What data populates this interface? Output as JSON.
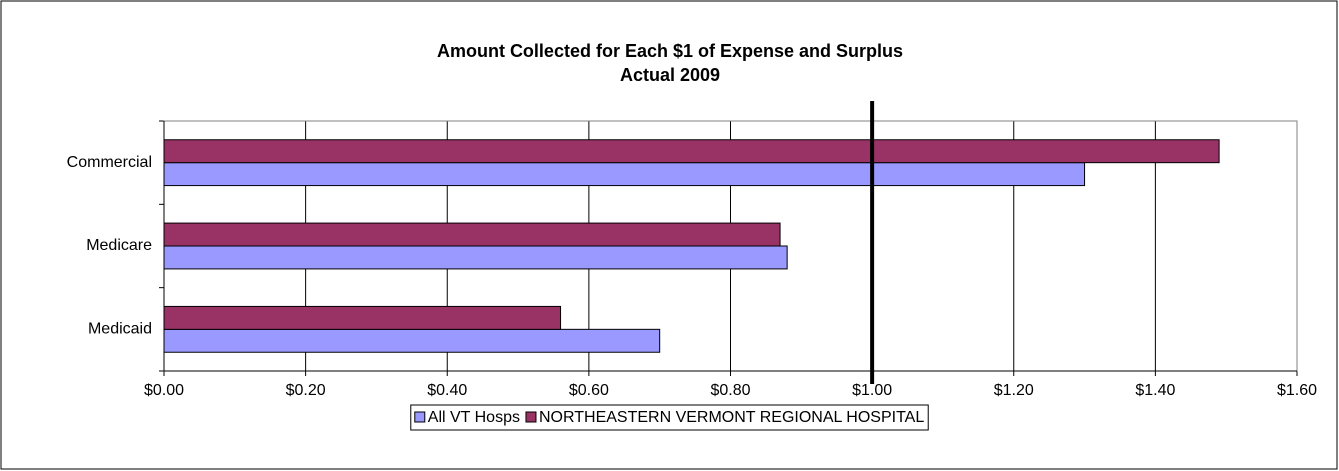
{
  "chart_data": {
    "type": "hbar",
    "title": "Amount Collected for Each $1 of Expense and Surplus",
    "subtitle": "Actual 2009",
    "categories": [
      "Commercial",
      "Medicare",
      "Medicaid"
    ],
    "series": [
      {
        "name": "All VT Hosps",
        "color": "#9999ff",
        "values": [
          1.3,
          0.88,
          0.7
        ]
      },
      {
        "name": "NORTHEASTERN VERMONT REGIONAL HOSPITAL",
        "color": "#993366",
        "values": [
          1.49,
          0.87,
          0.56
        ]
      }
    ],
    "xlim": [
      0,
      1.6
    ],
    "xticks": [
      {
        "value": 0,
        "label": "$0.00"
      },
      {
        "value": 0.2,
        "label": "$0.20"
      },
      {
        "value": 0.4,
        "label": "$0.40"
      },
      {
        "value": 0.6,
        "label": "$0.60"
      },
      {
        "value": 0.8,
        "label": "$0.80"
      },
      {
        "value": 1.0,
        "label": "$1.00"
      },
      {
        "value": 1.2,
        "label": "$1.20"
      },
      {
        "value": 1.4,
        "label": "$1.40"
      },
      {
        "value": 1.6,
        "label": "$1.60"
      }
    ],
    "reference_line": 1.0,
    "grid": true,
    "legend": "bottom"
  }
}
